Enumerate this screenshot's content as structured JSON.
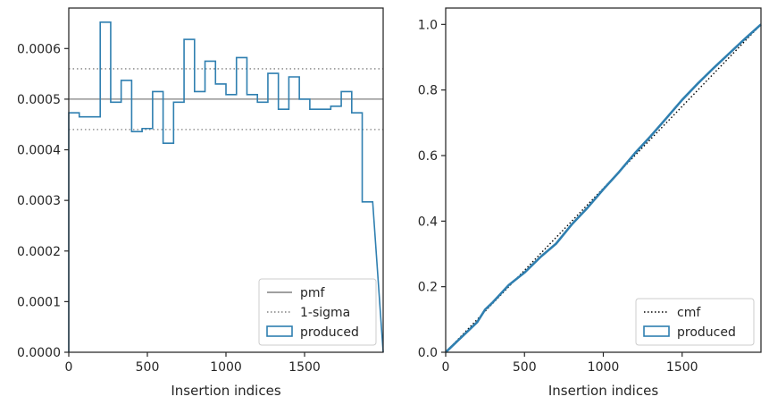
{
  "colors": {
    "produced": "#2f7fb0",
    "pmf": "#808080",
    "sigma": "#808080",
    "cmf": "#000000",
    "axes": "#262626",
    "legend_border": "#cccccc"
  },
  "chart_data": [
    {
      "type": "line",
      "xlabel": "Insertion indices",
      "ylabel": "",
      "xlim": [
        0,
        2000
      ],
      "ylim": [
        0,
        0.00068
      ],
      "xticks": [
        0,
        500,
        1000,
        1500
      ],
      "yticks": [
        0,
        0.0001,
        0.0002,
        0.0003,
        0.0004,
        0.0005,
        0.0006
      ],
      "ytick_labels": [
        "0.0000",
        "0.0001",
        "0.0002",
        "0.0003",
        "0.0004",
        "0.0005",
        "0.0006"
      ],
      "legend_position": "lower-right",
      "series": [
        {
          "name": "pmf",
          "style": "solid",
          "y": 0.0005
        },
        {
          "name": "1-sigma",
          "style": "dotted",
          "y": [
            0.00044,
            0.00056
          ]
        },
        {
          "name": "produced",
          "style": "step-histogram",
          "bin_width": 66.67,
          "values": [
            0.000473,
            0.000465,
            0.000465,
            0.000652,
            0.000494,
            0.000537,
            0.000436,
            0.000442,
            0.000515,
            0.000413,
            0.000494,
            0.000618,
            0.000515,
            0.000575,
            0.00053,
            0.000509,
            0.000582,
            0.000509,
            0.000494,
            0.000551,
            0.00048,
            0.000544,
            0.0005,
            0.00048,
            0.00048,
            0.000486,
            0.000515,
            0.000473,
            0.000297
          ]
        }
      ]
    },
    {
      "type": "line",
      "xlabel": "Insertion indices",
      "ylabel": "",
      "xlim": [
        0,
        2000
      ],
      "ylim": [
        0,
        1.05
      ],
      "xticks": [
        0,
        500,
        1000,
        1500
      ],
      "yticks": [
        0.0,
        0.2,
        0.4,
        0.6,
        0.8,
        1.0
      ],
      "ytick_labels": [
        "0.0",
        "0.2",
        "0.4",
        "0.6",
        "0.8",
        "1.0"
      ],
      "legend_position": "lower-right",
      "series": [
        {
          "name": "cmf",
          "style": "dotted",
          "x": [
            0,
            2000
          ],
          "y": [
            0,
            1.0
          ]
        },
        {
          "name": "produced",
          "style": "step-cumulative",
          "x": [
            0,
            100,
            200,
            250,
            300,
            400,
            500,
            600,
            700,
            800,
            900,
            1000,
            1100,
            1200,
            1300,
            1400,
            1500,
            1600,
            1700,
            1800,
            1900,
            2000
          ],
          "y": [
            0,
            0.046,
            0.092,
            0.13,
            0.153,
            0.205,
            0.243,
            0.29,
            0.331,
            0.39,
            0.441,
            0.497,
            0.55,
            0.607,
            0.659,
            0.714,
            0.77,
            0.82,
            0.867,
            0.912,
            0.957,
            1.0
          ]
        }
      ]
    }
  ]
}
